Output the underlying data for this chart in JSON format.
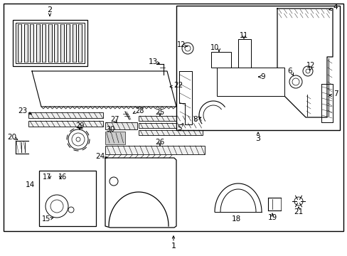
{
  "bg_color": "#ffffff",
  "line_color": "#000000",
  "text_color": "#000000",
  "fig_width": 4.89,
  "fig_height": 3.6,
  "dpi": 100
}
